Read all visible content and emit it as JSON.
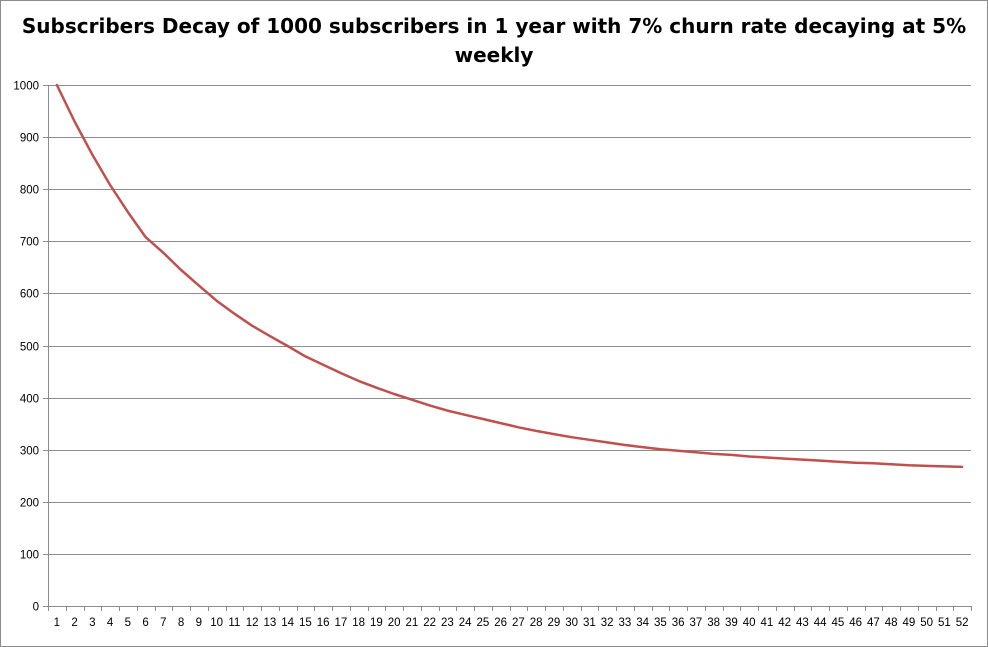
{
  "chart_data": {
    "type": "line",
    "title": "Subscribers Decay of 1000 subscribers in 1 year with 7% churn rate decaying at 5% weekly",
    "xlabel": "",
    "ylabel": "",
    "ylim": [
      0,
      1000
    ],
    "yticks": [
      0,
      100,
      200,
      300,
      400,
      500,
      600,
      700,
      800,
      900,
      1000
    ],
    "grid": true,
    "legend": "none",
    "x": [
      1,
      2,
      3,
      4,
      5,
      6,
      7,
      8,
      9,
      10,
      11,
      12,
      13,
      14,
      15,
      16,
      17,
      18,
      19,
      20,
      21,
      22,
      23,
      24,
      25,
      26,
      27,
      28,
      29,
      30,
      31,
      32,
      33,
      34,
      35,
      36,
      37,
      38,
      39,
      40,
      41,
      42,
      43,
      44,
      45,
      46,
      47,
      48,
      49,
      50,
      51,
      52
    ],
    "series": [
      {
        "color": "#c0504d",
        "values": [
          1000,
          930,
          866,
          808,
          756,
          708,
          678,
          645,
          615,
          586,
          561,
          538,
          518,
          499,
          479,
          463,
          447,
          432,
          419,
          407,
          396,
          385,
          375,
          367,
          359,
          351,
          343,
          336,
          330,
          324,
          319,
          314,
          309,
          305,
          301,
          298,
          295,
          292,
          290,
          287,
          285,
          283,
          281,
          279,
          277,
          275,
          274,
          272,
          270,
          269,
          268,
          267
        ]
      }
    ]
  }
}
